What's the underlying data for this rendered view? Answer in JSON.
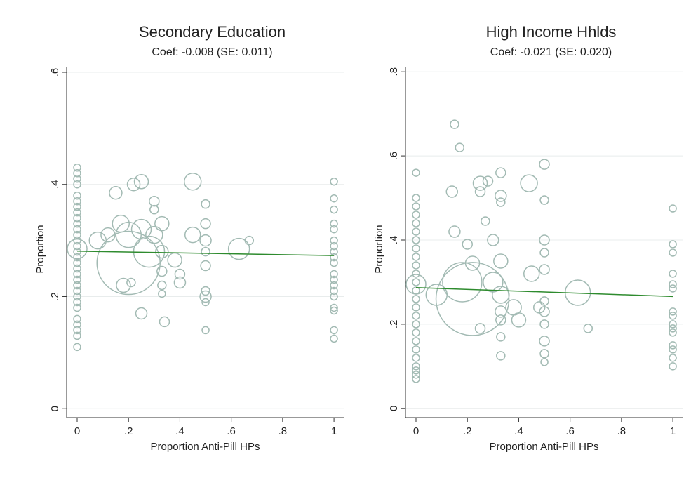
{
  "chart_data": [
    {
      "type": "scatter",
      "title": "Secondary Education",
      "subtitle": "Coef: -0.008 (SE: 0.011)",
      "x_label": "Proportion Anti-Pill HPs",
      "y_label": "Proportion",
      "color": "#a2bab3",
      "fit_color": "#2e8b2e",
      "xlim": [
        -0.041,
        1.038
      ],
      "ylim": [
        -0.016,
        0.61
      ],
      "xticks": [
        0,
        {
          "value": 0.2,
          "label": ".2"
        },
        {
          "value": 0.4,
          "label": ".4"
        },
        {
          "value": 0.6,
          "label": ".6"
        },
        {
          "value": 0.8,
          "label": ".8"
        },
        1
      ],
      "yticks": [
        0,
        {
          "value": 0.2,
          "label": ".2"
        },
        {
          "value": 0.4,
          "label": ".4"
        },
        {
          "value": 0.6,
          "label": ".6"
        }
      ],
      "grid": true,
      "x": [
        0,
        0,
        0,
        0,
        0,
        0,
        0,
        0,
        0,
        0,
        0,
        0,
        0,
        0,
        0,
        0,
        0,
        0,
        0,
        0,
        0,
        0,
        0,
        0,
        0,
        0,
        0,
        0,
        0,
        0,
        0,
        0.08,
        0.12,
        0.15,
        0.17,
        0.2,
        0.2,
        0.22,
        0.25,
        0.25,
        0.28,
        0.3,
        0.3,
        0.3,
        0.33,
        0.33,
        0.33,
        0.33,
        0.33,
        0.34,
        0.25,
        0.18,
        0.21,
        0.38,
        0.4,
        0.4,
        0.45,
        0.45,
        0.5,
        0.5,
        0.5,
        0.5,
        0.5,
        0.5,
        0.5,
        0.5,
        0.5,
        0.63,
        0.67,
        1,
        1,
        1,
        1,
        1,
        1,
        1,
        1,
        1,
        1,
        1,
        1,
        1,
        1,
        1,
        1,
        1,
        1,
        1
      ],
      "values": [
        0.43,
        0.42,
        0.41,
        0.4,
        0.38,
        0.37,
        0.36,
        0.35,
        0.34,
        0.33,
        0.32,
        0.31,
        0.3,
        0.29,
        0.28,
        0.27,
        0.26,
        0.25,
        0.24,
        0.23,
        0.22,
        0.21,
        0.2,
        0.19,
        0.18,
        0.16,
        0.15,
        0.14,
        0.13,
        0.11,
        0.285,
        0.3,
        0.31,
        0.385,
        0.33,
        0.26,
        0.31,
        0.4,
        0.405,
        0.32,
        0.28,
        0.31,
        0.37,
        0.355,
        0.33,
        0.28,
        0.245,
        0.22,
        0.205,
        0.155,
        0.17,
        0.22,
        0.225,
        0.265,
        0.24,
        0.225,
        0.405,
        0.31,
        0.365,
        0.33,
        0.3,
        0.28,
        0.255,
        0.21,
        0.19,
        0.2,
        0.14,
        0.285,
        0.3,
        0.405,
        0.375,
        0.355,
        0.33,
        0.32,
        0.3,
        0.29,
        0.28,
        0.27,
        0.26,
        0.24,
        0.23,
        0.22,
        0.21,
        0.2,
        0.18,
        0.175,
        0.14,
        0.125
      ],
      "sizes": [
        25,
        25,
        25,
        25,
        25,
        25,
        25,
        25,
        25,
        25,
        25,
        25,
        25,
        25,
        25,
        25,
        25,
        25,
        25,
        25,
        25,
        25,
        25,
        25,
        25,
        25,
        25,
        25,
        25,
        25,
        196,
        144,
        100,
        81,
        144,
        2025,
        324,
        81,
        100,
        196,
        484,
        144,
        49,
        36,
        100,
        81,
        49,
        36,
        25,
        49,
        64,
        100,
        36,
        100,
        49,
        64,
        144,
        121,
        36,
        49,
        64,
        36,
        49,
        36,
        25,
        64,
        25,
        225,
        36,
        25,
        25,
        25,
        25,
        25,
        25,
        25,
        25,
        25,
        25,
        25,
        25,
        25,
        25,
        25,
        25,
        25,
        25,
        25
      ],
      "fit": {
        "x": [
          0,
          1
        ],
        "values": [
          0.281,
          0.273
        ]
      }
    },
    {
      "type": "scatter",
      "title": "High Income Hhlds",
      "subtitle": "Coef: -0.021 (SE: 0.020)",
      "x_label": "Proportion Anti-Pill HPs",
      "y_label": "Proportion",
      "color": "#a2bab3",
      "fit_color": "#2e8b2e",
      "xlim": [
        -0.041,
        1.038
      ],
      "ylim": [
        -0.022,
        0.812
      ],
      "xticks": [
        0,
        {
          "value": 0.2,
          "label": ".2"
        },
        {
          "value": 0.4,
          "label": ".4"
        },
        {
          "value": 0.6,
          "label": ".6"
        },
        {
          "value": 0.8,
          "label": ".8"
        },
        1
      ],
      "yticks": [
        0,
        {
          "value": 0.2,
          "label": ".2"
        },
        {
          "value": 0.4,
          "label": ".4"
        },
        {
          "value": 0.6,
          "label": ".6"
        },
        {
          "value": 0.8,
          "label": ".8"
        }
      ],
      "grid": true,
      "x": [
        0,
        0,
        0,
        0,
        0,
        0,
        0,
        0,
        0,
        0,
        0,
        0,
        0,
        0,
        0,
        0,
        0,
        0,
        0,
        0,
        0,
        0,
        0,
        0,
        0,
        0,
        0.08,
        0.14,
        0.15,
        0.17,
        0.15,
        0.18,
        0.22,
        0.2,
        0.22,
        0.25,
        0.25,
        0.27,
        0.28,
        0.3,
        0.3,
        0.33,
        0.33,
        0.33,
        0.33,
        0.33,
        0.33,
        0.33,
        0.33,
        0.33,
        0.25,
        0.38,
        0.4,
        0.44,
        0.45,
        0.48,
        0.5,
        0.5,
        0.5,
        0.5,
        0.5,
        0.5,
        0.5,
        0.5,
        0.5,
        0.5,
        0.5,
        0.63,
        0.67,
        1,
        1,
        1,
        1,
        1,
        1,
        1,
        1,
        1,
        1,
        1,
        1,
        1,
        1,
        1
      ],
      "values": [
        0.56,
        0.5,
        0.48,
        0.46,
        0.44,
        0.42,
        0.4,
        0.38,
        0.36,
        0.34,
        0.32,
        0.3,
        0.28,
        0.26,
        0.24,
        0.22,
        0.2,
        0.18,
        0.16,
        0.14,
        0.12,
        0.1,
        0.09,
        0.08,
        0.07,
        0.295,
        0.27,
        0.515,
        0.675,
        0.62,
        0.42,
        0.3,
        0.26,
        0.39,
        0.345,
        0.535,
        0.515,
        0.445,
        0.54,
        0.4,
        0.3,
        0.56,
        0.505,
        0.49,
        0.35,
        0.27,
        0.23,
        0.21,
        0.17,
        0.125,
        0.19,
        0.24,
        0.21,
        0.535,
        0.32,
        0.24,
        0.58,
        0.495,
        0.4,
        0.37,
        0.33,
        0.255,
        0.23,
        0.2,
        0.16,
        0.13,
        0.11,
        0.275,
        0.19,
        0.475,
        0.39,
        0.37,
        0.32,
        0.295,
        0.285,
        0.23,
        0.22,
        0.2,
        0.19,
        0.18,
        0.15,
        0.14,
        0.12,
        0.1
      ],
      "sizes": [
        25,
        25,
        25,
        25,
        25,
        25,
        25,
        25,
        25,
        25,
        25,
        25,
        25,
        25,
        25,
        25,
        25,
        25,
        25,
        25,
        25,
        25,
        25,
        25,
        25,
        196,
        225,
        64,
        36,
        36,
        64,
        784,
        2704,
        49,
        100,
        100,
        49,
        36,
        49,
        64,
        196,
        49,
        64,
        36,
        100,
        144,
        64,
        49,
        36,
        36,
        49,
        121,
        100,
        144,
        121,
        64,
        49,
        36,
        49,
        36,
        49,
        36,
        49,
        36,
        49,
        36,
        25,
        324,
        36,
        25,
        25,
        25,
        25,
        25,
        25,
        25,
        25,
        25,
        25,
        25,
        25,
        25,
        25,
        25
      ],
      "fit": {
        "x": [
          0,
          1
        ],
        "values": [
          0.287,
          0.266
        ]
      }
    }
  ]
}
